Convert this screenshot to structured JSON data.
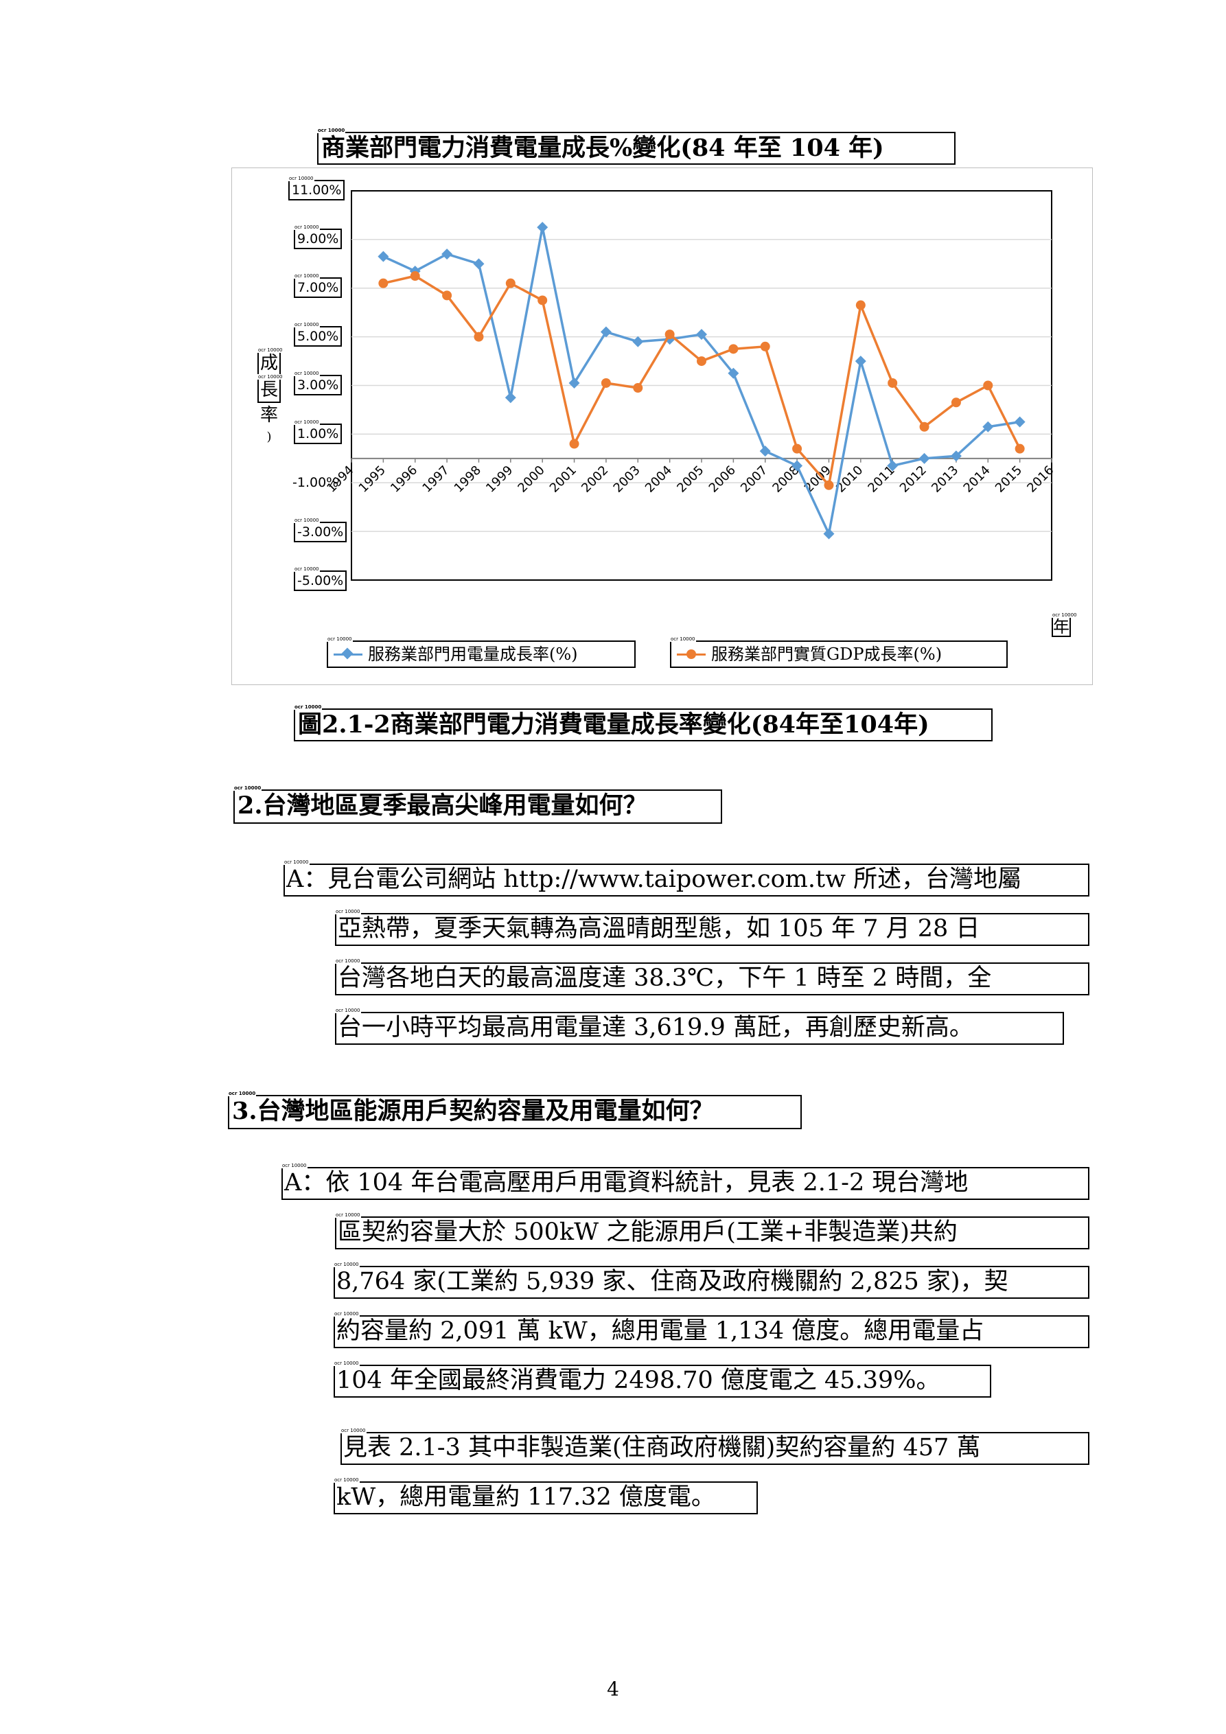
{
  "chart_title": "商業部門電力消費電量成長%變化(84 年至 104 年)",
  "chart_data": {
    "type": "line",
    "title": "商業部門電力消費電量成長%變化(84 年至 104 年)",
    "ylabel": "(成長率)",
    "xlabel": "年",
    "x": [
      "1994",
      "1995",
      "1996",
      "1997",
      "1998",
      "1999",
      "2000",
      "2001",
      "2002",
      "2003",
      "2004",
      "2005",
      "2006",
      "2007",
      "2008",
      "2009",
      "2010",
      "2011",
      "2012",
      "2013",
      "2014",
      "2015",
      "2016"
    ],
    "y_ticks": [
      "11.00%",
      "9.00%",
      "7.00%",
      "5.00%",
      "3.00%",
      "1.00%",
      "-1.00%",
      "-3.00%",
      "-5.00%"
    ],
    "ylim": [
      -5,
      11
    ],
    "legend_position": "bottom",
    "grid": true,
    "series": [
      {
        "name": "服務業部門用電量成長率(%)",
        "color": "#5b9bd5",
        "marker": "diamond",
        "values": [
          null,
          8.3,
          7.7,
          8.4,
          8.0,
          2.5,
          9.5,
          3.1,
          5.2,
          4.8,
          4.9,
          5.1,
          3.5,
          0.3,
          -0.3,
          -3.1,
          4.0,
          -0.3,
          0.0,
          0.1,
          1.3,
          1.5,
          null
        ]
      },
      {
        "name": "服務業部門實質GDP成長率(%)",
        "color": "#ed7d31",
        "marker": "circle",
        "values": [
          null,
          7.2,
          7.5,
          6.7,
          5.0,
          7.2,
          6.5,
          0.6,
          3.1,
          2.9,
          5.1,
          4.0,
          4.5,
          4.6,
          0.4,
          -1.1,
          6.3,
          3.1,
          1.3,
          2.3,
          3.0,
          0.4,
          null
        ]
      }
    ]
  },
  "y_axis_chars": [
    "成",
    "長",
    "率"
  ],
  "x_axis_unit": "年",
  "caption": "圖2.1-2商業部門電力消費電量成長率變化(84年至104年)",
  "q2": {
    "heading": "2.台灣地區夏季最高尖峰用電量如何？",
    "lines": [
      "A：見台電公司網站 http://www.taipower.com.tw 所述，台灣地屬",
      "亞熱帶，夏季天氣轉為高溫晴朗型態，如 105 年 7 月 28 日",
      "台灣各地白天的最高溫度達 38.3℃，下午 1 時至 2 時間，全",
      "台一小時平均最高用電量達 3,619.9 萬瓩，再創歷史新高。"
    ]
  },
  "q3": {
    "heading": "3.台灣地區能源用戶契約容量及用電量如何？",
    "lines": [
      "A：依 104 年台電高壓用戶用電資料統計，見表 2.1-2 現台灣地",
      "區契約容量大於 500kW 之能源用戶(工業+非製造業)共約",
      "8,764 家(工業約 5,939 家、住商及政府機關約 2,825 家)，契",
      "約容量約 2,091 萬 kW，總用電量 1,134 億度。總用電量占",
      "104 年全國最終消費電力 2498.70 億度電之 45.39%。"
    ],
    "extra_lines": [
      "見表 2.1-3 其中非製造業(住商政府機關)契約容量約 457 萬",
      "kW，總用電量約 117.32 億度電。"
    ]
  },
  "ocr_tag": "ocr 10000",
  "page_number": "4"
}
